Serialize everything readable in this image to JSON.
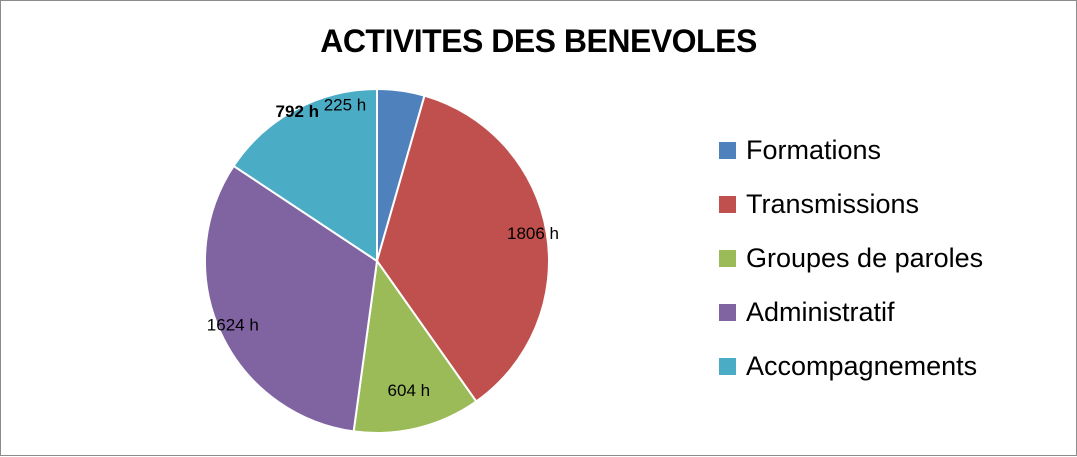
{
  "chart_data": {
    "type": "pie",
    "title": "ACTIVITES DES BENEVOLES",
    "categories": [
      "Formations",
      "Transmissions",
      "Groupes de paroles",
      "Administratif",
      "Accompagnements"
    ],
    "values": [
      225,
      1806,
      604,
      1624,
      792
    ],
    "unit": "h",
    "data_labels": [
      "225 h",
      "1806 h",
      "604 h",
      "1624 h",
      "792 h"
    ],
    "colors": [
      "#4f81bd",
      "#c0504d",
      "#9bbb59",
      "#8064a2",
      "#4bacc6"
    ],
    "legend_position": "right",
    "start_angle": "top, clockwise"
  }
}
